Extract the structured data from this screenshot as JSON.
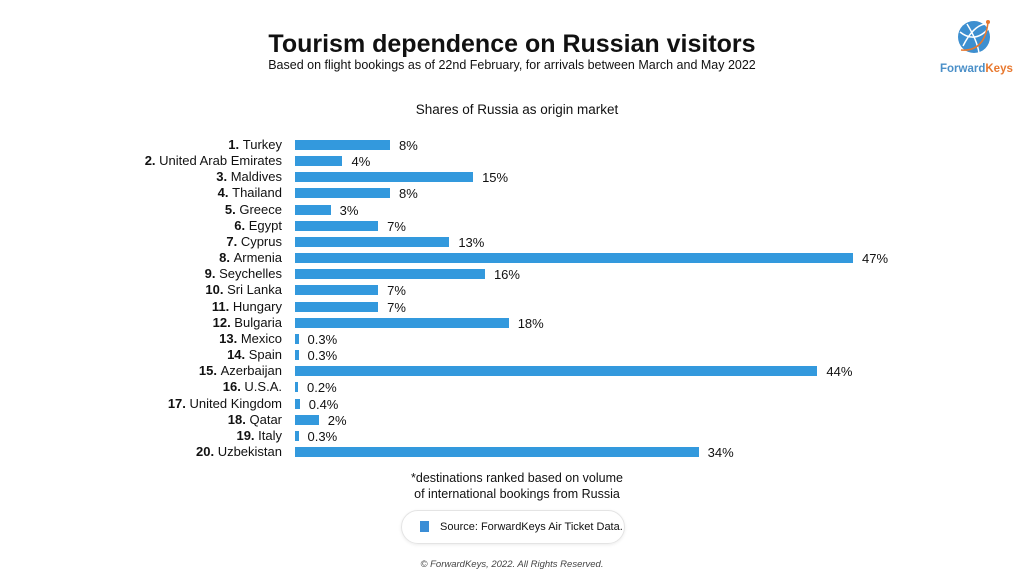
{
  "chart_data": {
    "type": "bar",
    "title": "Tourism dependence on Russian visitors",
    "subtitle": "Based on flight bookings as of 22nd February, for arrivals between March and May 2022",
    "chart_title": "Shares of Russia as origin market",
    "ranks": [
      "1.",
      "2.",
      "3.",
      "4.",
      "5.",
      "6.",
      "7.",
      "8.",
      "9.",
      "10.",
      "11.",
      "12.",
      "13.",
      "14.",
      "15.",
      "16.",
      "17.",
      "18.",
      "19.",
      "20."
    ],
    "categories": [
      "Turkey",
      "United Arab Emirates",
      "Maldives",
      "Thailand",
      "Greece",
      "Egypt",
      "Cyprus",
      "Armenia",
      "Seychelles",
      "Sri Lanka",
      "Hungary",
      "Bulgaria",
      "Mexico",
      "Spain",
      "Azerbaijan",
      "U.S.A.",
      "United Kingdom",
      "Qatar",
      "Italy",
      "Uzbekistan"
    ],
    "values": [
      8,
      4,
      15,
      8,
      3,
      7,
      13,
      47,
      16,
      7,
      7,
      18,
      0.3,
      0.3,
      44,
      0.2,
      0.4,
      2,
      0.3,
      34
    ],
    "value_labels": [
      "8%",
      "4%",
      "15%",
      "8%",
      "3%",
      "7%",
      "13%",
      "47%",
      "16%",
      "7%",
      "7%",
      "18%",
      "0.3%",
      "0.3%",
      "44%",
      "0.2%",
      "0.4%",
      "2%",
      "0.3%",
      "34%"
    ],
    "xlim": [
      0,
      50
    ],
    "bar_color": "#3399dd",
    "note": "*destinations ranked based on volume of international bookings from Russia"
  },
  "note_line1": "*destinations ranked based on volume",
  "note_line2": "of international bookings from Russia",
  "source": "Source: ForwardKeys Air Ticket Data.",
  "copyright": "© ForwardKeys, 2022. All Rights Reserved.",
  "logo": {
    "text": "ForwardKeys"
  }
}
